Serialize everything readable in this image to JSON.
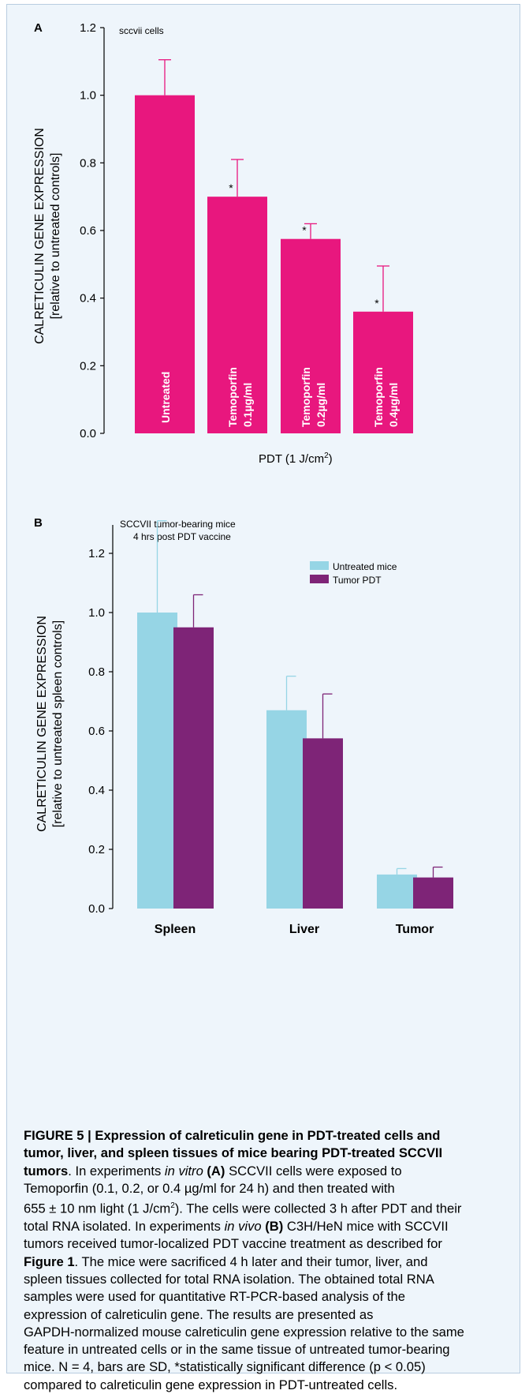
{
  "chart_data": [
    {
      "type": "bar",
      "panel_label": "A",
      "annotation": "sccvii cells",
      "ylabel": "CALRETICULIN GENE EXPRESSION",
      "ylabel_sub": "[relative to untreated controls]",
      "xlabel": "PDT (1 J/cm",
      "xlabel_sup": "2",
      "xlabel_end": ")",
      "ylim": [
        0,
        1.2
      ],
      "yticks": [
        "0.0",
        "0.2",
        "0.4",
        "0.6",
        "0.8",
        "1.0",
        "1.2"
      ],
      "grid": false,
      "bar_color": "#e8177e",
      "categories": [
        {
          "line1": "Untreated",
          "line2": ""
        },
        {
          "line1": "Temoporfin",
          "line2": "0.1µg/ml"
        },
        {
          "line1": "Temoporfin",
          "line2": "0.2µg/ml"
        },
        {
          "line1": "Temoporfin",
          "line2": "0.4µg/ml"
        }
      ],
      "values": [
        1.0,
        0.7,
        0.575,
        0.36
      ],
      "errors": [
        0.105,
        0.11,
        0.045,
        0.135
      ],
      "significance": [
        "",
        "*",
        "*",
        "*"
      ]
    },
    {
      "type": "bar",
      "panel_label": "B",
      "annotation_line1": "SCCVII tumor-bearing mice",
      "annotation_line2": "4 hrs post PDT vaccine",
      "ylabel": "CALRETICULIN GENE EXPRESSION",
      "ylabel_sub": "[relative to untreated spleen controls]",
      "ylim": [
        0,
        1.3
      ],
      "yticks": [
        "0.0",
        "0.2",
        "0.4",
        "0.6",
        "0.8",
        "1.0",
        "1.2"
      ],
      "grid": false,
      "legend_position": "top-right",
      "categories": [
        "Spleen",
        "Liver",
        "Tumor"
      ],
      "series": [
        {
          "name": "Untreated mice",
          "color": "#96d5e5",
          "values": [
            1.0,
            0.67,
            0.115
          ],
          "errors": [
            0.31,
            0.115,
            0.02
          ]
        },
        {
          "name": "Tumor PDT",
          "color": "#7e2477",
          "values": [
            0.95,
            0.575,
            0.105
          ],
          "errors": [
            0.11,
            0.15,
            0.035
          ]
        }
      ]
    }
  ],
  "caption": {
    "line1": "FIGURE 5 | Expression of calreticulin gene in PDT-treated cells and",
    "line2": "tumor, liver, and spleen tissues of mice bearing PDT-treated SCCVII",
    "l3_bold": "tumors",
    "l3_a": ". In experiments ",
    "l3_em": "in vitro",
    "l3_b": " (A)",
    "l3_c": " SCCVII cells were exposed to",
    "line4": "Temoporfin (0.1, 0.2, or 0.4 µg/ml for 24 h) and then treated with",
    "l5_a": "655 ± 10 nm light (1 J/cm",
    "l5_sup": "2",
    "l5_b": "). The cells were collected 3 h after PDT and their",
    "l6_a": "total RNA isolated. In experiments ",
    "l6_em": "in vivo",
    "l6_b": " (B)",
    "l6_c": " C3H/HeN mice with SCCVII",
    "line7": "tumors received tumor-localized PDT vaccine treatment as described for",
    "l8_bold": "Figure 1",
    "l8_a": ". The mice were sacrificed 4 h later and their tumor, liver, and",
    "line9": "spleen tissues collected for total RNA isolation. The obtained total RNA",
    "line10": "samples were used for quantitative RT-PCR-based analysis of the",
    "line11": "expression of calreticulin gene. The results are presented as",
    "line12": "GAPDH-normalized mouse calreticulin gene expression relative to the same",
    "line13": "feature in untreated cells or in the same tissue of untreated tumor-bearing",
    "line14": "mice. N = 4, bars are SD, *statistically significant difference (p < 0.05)",
    "line15": "compared to calreticulin gene expression in PDT-untreated cells."
  }
}
